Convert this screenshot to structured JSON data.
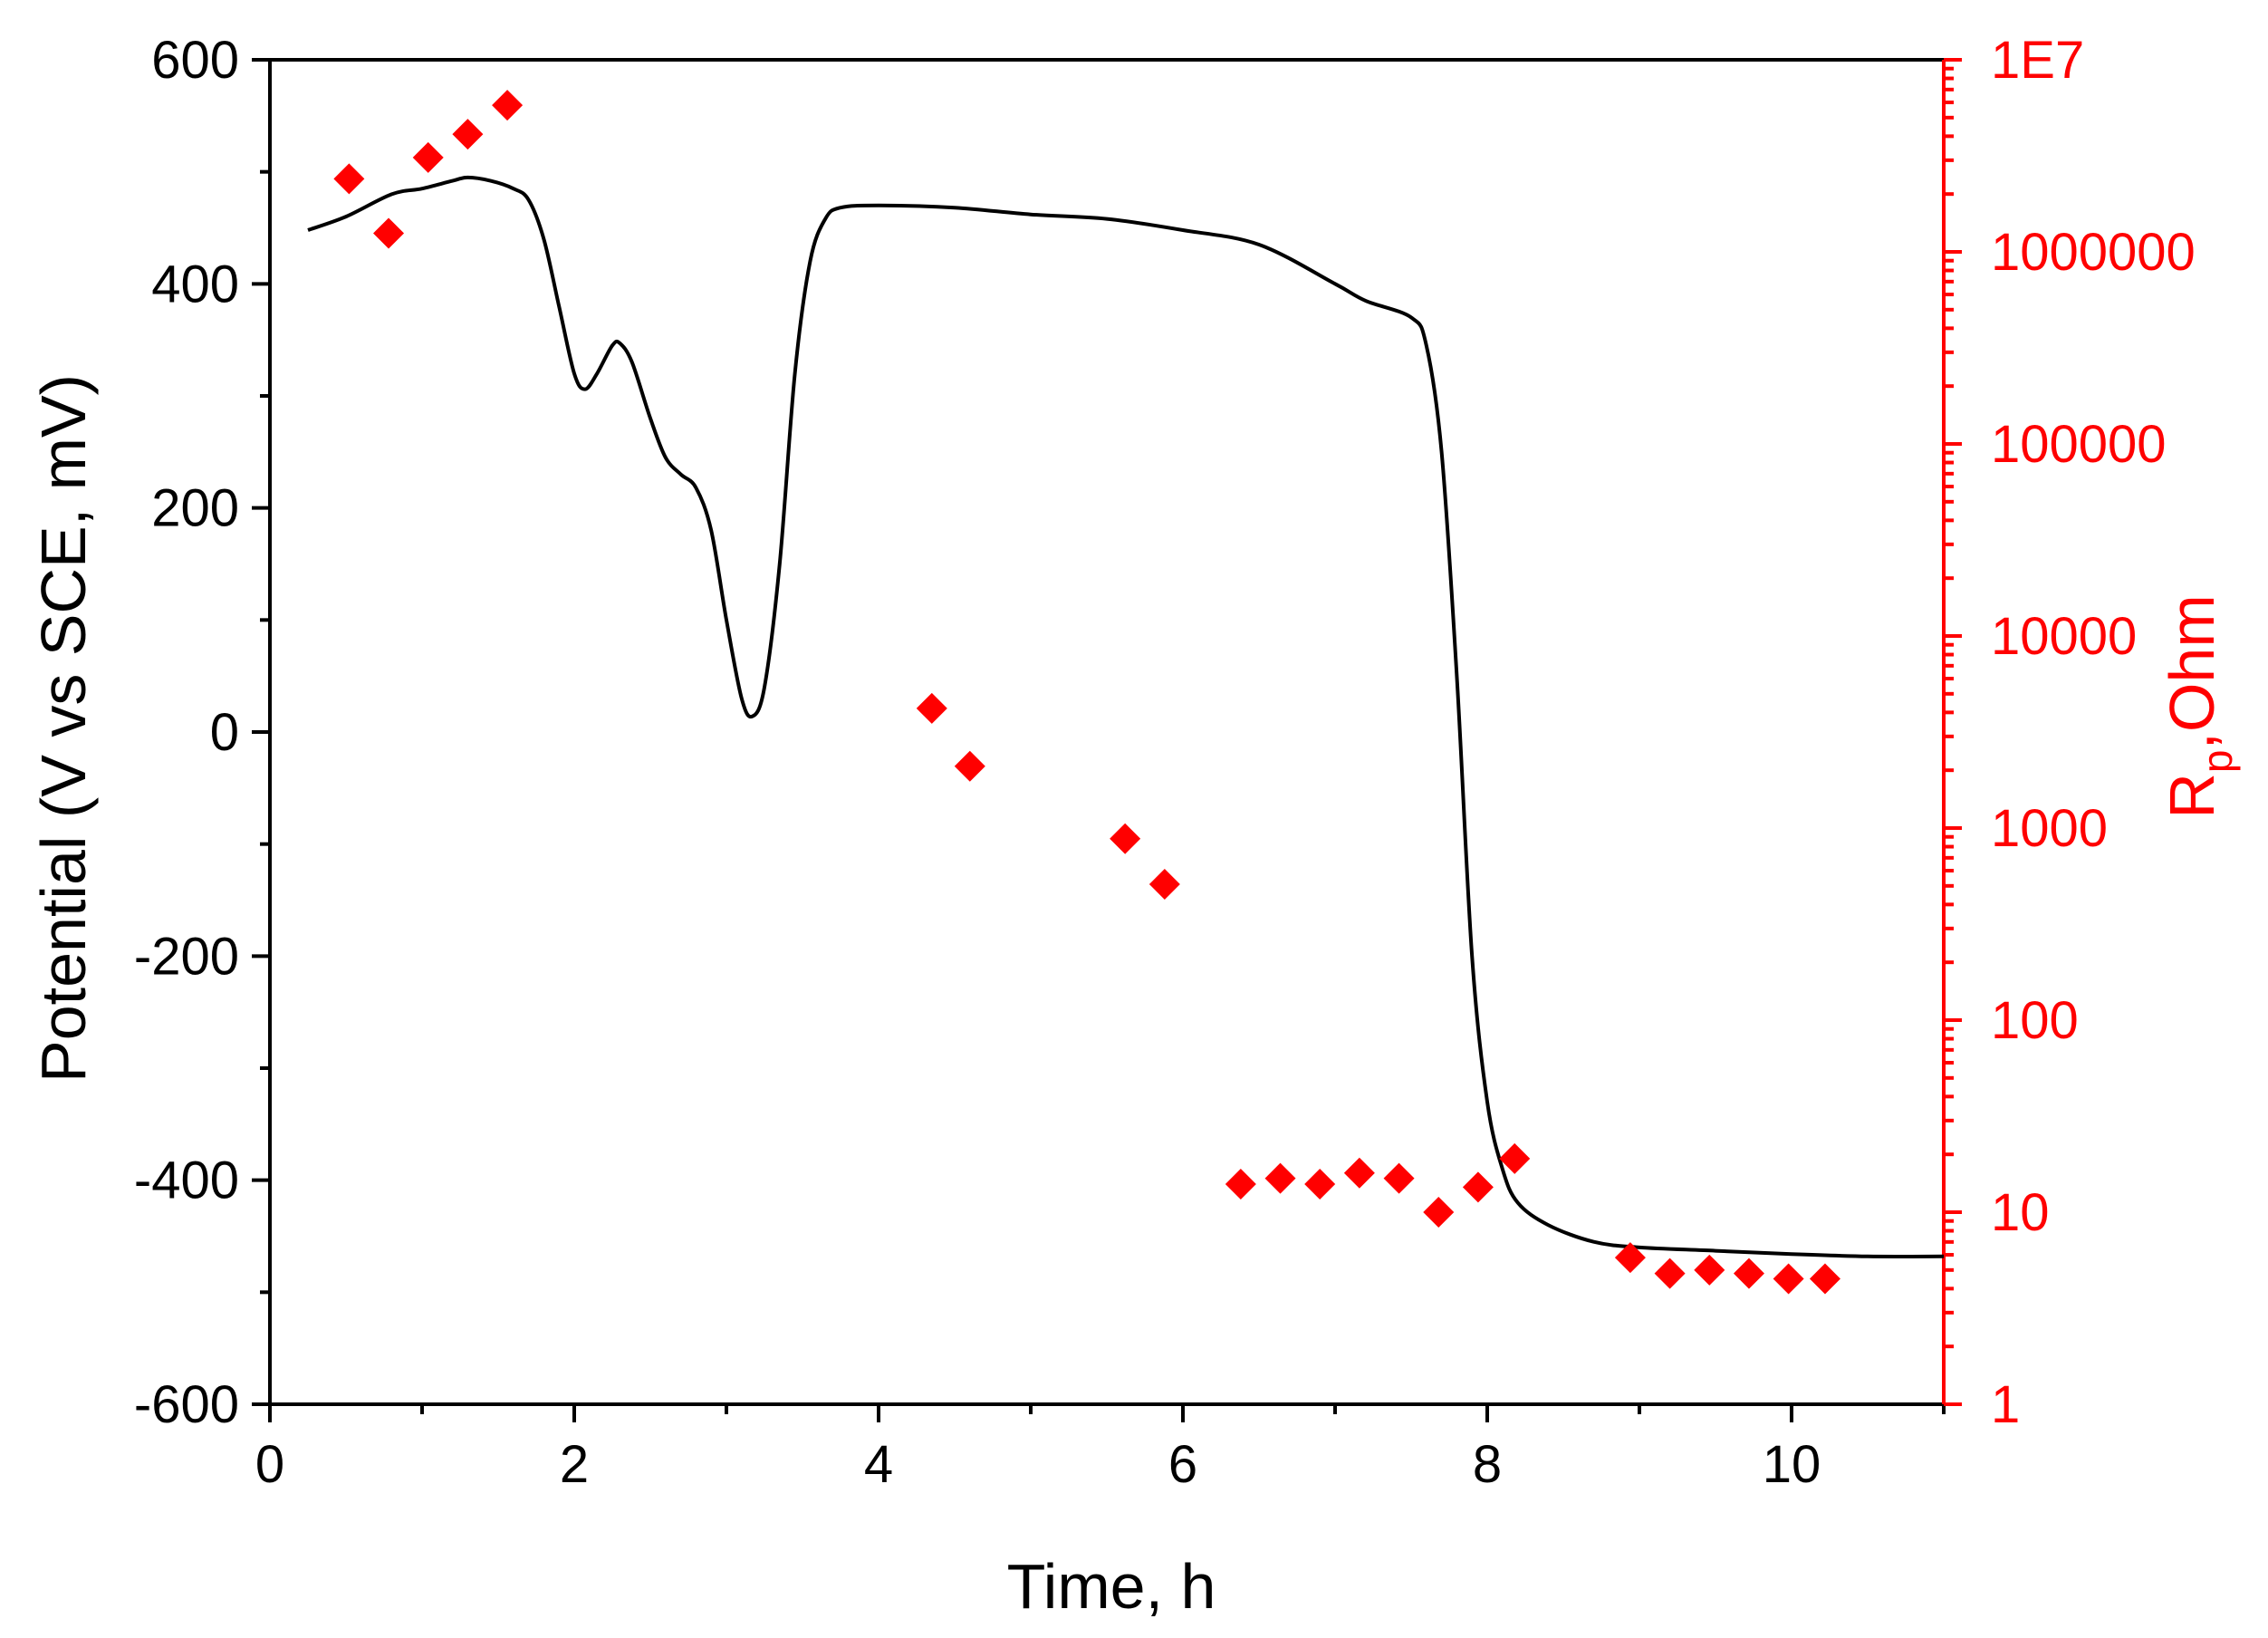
{
  "chart_data": {
    "type": "line+scatter",
    "title": "",
    "xlabel": "Time, h",
    "ylabel": "Potential (V vs SCE, mV)",
    "y2label": {
      "main": "R",
      "sub": "p",
      "rest": ",Ohm"
    },
    "xlim": [
      0,
      11
    ],
    "ylim": [
      -600,
      600
    ],
    "y2lim": [
      1,
      10000000
    ],
    "y2scale": "log",
    "x_ticks": [
      "0",
      "2",
      "4",
      "6",
      "8",
      "10"
    ],
    "y_ticks": [
      "600",
      "400",
      "200",
      "0",
      "-200",
      "-400",
      "-600"
    ],
    "y2_ticks": [
      "1E7",
      "1000000",
      "100000",
      "10000",
      "1000",
      "100",
      "10",
      "1"
    ],
    "colors": {
      "potential": "#000000",
      "rp": "#ff0000"
    },
    "series": [
      {
        "name": "Potential",
        "axis": "left",
        "style": "line",
        "points": [
          [
            0.25,
            448
          ],
          [
            0.5,
            460
          ],
          [
            0.8,
            480
          ],
          [
            1.0,
            485
          ],
          [
            1.2,
            492
          ],
          [
            1.3,
            495
          ],
          [
            1.45,
            492
          ],
          [
            1.6,
            485
          ],
          [
            1.7,
            475
          ],
          [
            1.8,
            440
          ],
          [
            1.9,
            380
          ],
          [
            2.0,
            320
          ],
          [
            2.07,
            306
          ],
          [
            2.15,
            320
          ],
          [
            2.25,
            345
          ],
          [
            2.3,
            347
          ],
          [
            2.38,
            330
          ],
          [
            2.5,
            280
          ],
          [
            2.6,
            245
          ],
          [
            2.7,
            230
          ],
          [
            2.8,
            218
          ],
          [
            2.9,
            180
          ],
          [
            3.0,
            100
          ],
          [
            3.1,
            30
          ],
          [
            3.17,
            14
          ],
          [
            3.25,
            40
          ],
          [
            3.35,
            150
          ],
          [
            3.45,
            320
          ],
          [
            3.55,
            420
          ],
          [
            3.65,
            458
          ],
          [
            3.75,
            468
          ],
          [
            4.0,
            470
          ],
          [
            4.5,
            468
          ],
          [
            5.0,
            462
          ],
          [
            5.5,
            458
          ],
          [
            6.0,
            448
          ],
          [
            6.5,
            435
          ],
          [
            7.0,
            400
          ],
          [
            7.2,
            385
          ],
          [
            7.5,
            370
          ],
          [
            7.6,
            345
          ],
          [
            7.7,
            250
          ],
          [
            7.8,
            50
          ],
          [
            7.9,
            -200
          ],
          [
            8.0,
            -330
          ],
          [
            8.1,
            -390
          ],
          [
            8.2,
            -420
          ],
          [
            8.4,
            -440
          ],
          [
            8.7,
            -455
          ],
          [
            9.0,
            -460
          ],
          [
            9.5,
            -463
          ],
          [
            10.0,
            -466
          ],
          [
            10.5,
            -468
          ],
          [
            11.0,
            -468
          ]
        ]
      },
      {
        "name": "Rp",
        "axis": "right",
        "style": "marker",
        "marker": "diamond",
        "points": [
          [
            0.52,
            2400000
          ],
          [
            0.78,
            1250000
          ],
          [
            1.04,
            3100000
          ],
          [
            1.3,
            4100000
          ],
          [
            1.56,
            5800000
          ],
          [
            4.35,
            4200
          ],
          [
            4.6,
            2100
          ],
          [
            5.62,
            880
          ],
          [
            5.88,
            510
          ],
          [
            6.38,
            14
          ],
          [
            6.64,
            15
          ],
          [
            6.9,
            14
          ],
          [
            7.16,
            16
          ],
          [
            7.42,
            15
          ],
          [
            7.68,
            10
          ],
          [
            7.94,
            13.5
          ],
          [
            8.18,
            19
          ],
          [
            8.94,
            5.8
          ],
          [
            9.2,
            4.8
          ],
          [
            9.46,
            5.0
          ],
          [
            9.72,
            4.8
          ],
          [
            9.98,
            4.5
          ],
          [
            10.22,
            4.5
          ]
        ]
      }
    ]
  }
}
